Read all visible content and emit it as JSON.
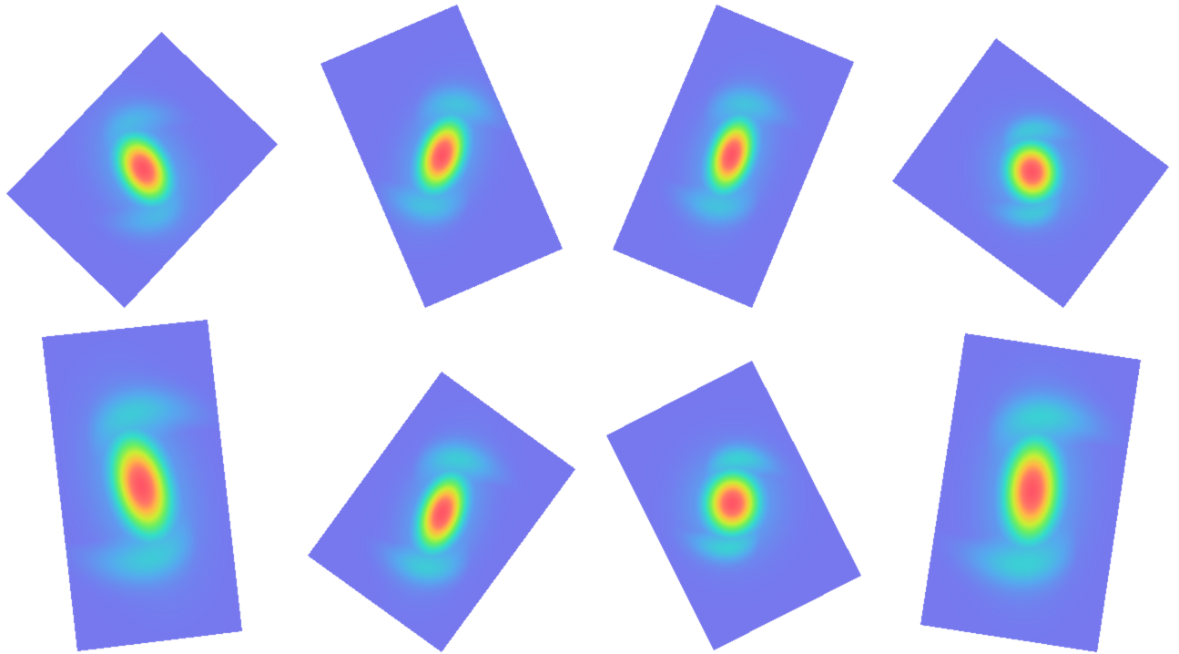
{
  "panels": [
    {
      "id": "panel-1",
      "core_angle_deg": -28,
      "core_aspect": 1.5,
      "core_spread": 1.0,
      "arm_strength": 0.35
    },
    {
      "id": "panel-2",
      "core_angle_deg": 20,
      "core_aspect": 1.7,
      "core_spread": 1.0,
      "arm_strength": 0.45
    },
    {
      "id": "panel-3",
      "core_angle_deg": 18,
      "core_aspect": 1.8,
      "core_spread": 1.0,
      "arm_strength": 0.45
    },
    {
      "id": "panel-4",
      "core_angle_deg": -10,
      "core_aspect": 1.2,
      "core_spread": 1.0,
      "arm_strength": 0.5
    },
    {
      "id": "panel-5",
      "core_angle_deg": -15,
      "core_aspect": 1.9,
      "core_spread": 1.1,
      "arm_strength": 0.55
    },
    {
      "id": "panel-6",
      "core_angle_deg": 20,
      "core_aspect": 1.8,
      "core_spread": 1.0,
      "arm_strength": 0.55
    },
    {
      "id": "panel-7",
      "core_angle_deg": 5,
      "core_aspect": 1.15,
      "core_spread": 1.0,
      "arm_strength": 0.6
    },
    {
      "id": "panel-8",
      "core_angle_deg": 5,
      "core_aspect": 1.9,
      "core_spread": 1.1,
      "arm_strength": 0.6
    }
  ],
  "colors": {
    "background": "#ffffff",
    "panel": "#7777ee",
    "colormap": [
      "#7777ee",
      "#55aaee",
      "#33ddcc",
      "#66ee66",
      "#ccee33",
      "#ffbb44",
      "#ff7766",
      "#ff5566"
    ]
  }
}
